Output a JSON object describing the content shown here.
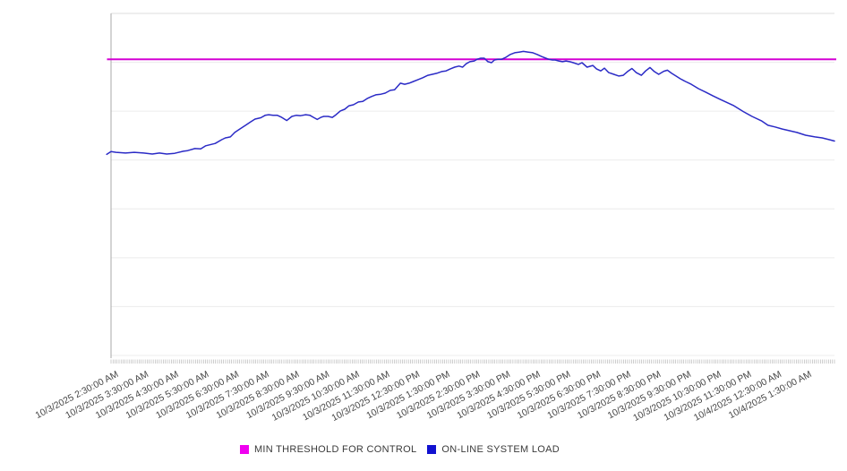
{
  "page": {
    "background": "#ffffff"
  },
  "chart_data": {
    "type": "line",
    "title": "",
    "grid": {
      "horizontal_lines": 8,
      "vertical_lines": 0
    },
    "legend_position": "bottom-center",
    "x_axis": {
      "labels": [
        "10/3/2025 2:30:00 AM",
        "10/3/2025 3:30:00 AM",
        "10/3/2025 4:30:00 AM",
        "10/3/2025 5:30:00 AM",
        "10/3/2025 6:30:00 AM",
        "10/3/2025 7:30:00 AM",
        "10/3/2025 8:30:00 AM",
        "10/3/2025 9:30:00 AM",
        "10/3/2025 10:30:00 AM",
        "10/3/2025 11:30:00 AM",
        "10/3/2025 12:30:00 PM",
        "10/3/2025 1:30:00 PM",
        "10/3/2025 2:30:00 PM",
        "10/3/2025 3:30:00 PM",
        "10/3/2025 4:30:00 PM",
        "10/3/2025 5:30:00 PM",
        "10/3/2025 6:30:00 PM",
        "10/3/2025 7:30:00 PM",
        "10/3/2025 8:30:00 PM",
        "10/3/2025 9:30:00 PM",
        "10/3/2025 10:30:00 PM",
        "10/3/2025 11:30:00 PM",
        "10/4/2025 12:30:00 AM",
        "10/4/2025 1:30:00 AM"
      ],
      "tick_label_rotation_deg": -27.5,
      "minor_tick_count": 360
    },
    "y_axis": {
      "tick_labels_visible": false,
      "range": [
        0,
        100
      ],
      "unit": "relative load (0-100, unlabeled axis)"
    },
    "series": [
      {
        "name": "MIN THRESHOLD FOR CONTROL",
        "type": "constant-threshold-line",
        "value": 86.6,
        "line_color": "#d400d4",
        "legend_color": "#f000f0"
      },
      {
        "name": "ON-LINE SYSTEM LOAD",
        "type": "line",
        "line_color": "#2b2bc6",
        "legend_color": "#1111d0",
        "points": [
          [
            -0.006,
            58.8
          ],
          [
            0.0,
            59.6
          ],
          [
            0.007,
            59.4
          ],
          [
            0.02,
            59.2
          ],
          [
            0.032,
            59.4
          ],
          [
            0.045,
            59.2
          ],
          [
            0.057,
            58.9
          ],
          [
            0.067,
            59.2
          ],
          [
            0.077,
            58.9
          ],
          [
            0.088,
            59.1
          ],
          [
            0.1,
            59.7
          ],
          [
            0.106,
            59.9
          ],
          [
            0.116,
            60.5
          ],
          [
            0.124,
            60.4
          ],
          [
            0.131,
            61.3
          ],
          [
            0.144,
            62.0
          ],
          [
            0.153,
            63.1
          ],
          [
            0.158,
            63.6
          ],
          [
            0.165,
            63.9
          ],
          [
            0.171,
            65.2
          ],
          [
            0.178,
            66.2
          ],
          [
            0.186,
            67.3
          ],
          [
            0.193,
            68.3
          ],
          [
            0.199,
            69.1
          ],
          [
            0.207,
            69.5
          ],
          [
            0.213,
            70.2
          ],
          [
            0.218,
            70.4
          ],
          [
            0.224,
            70.2
          ],
          [
            0.23,
            70.2
          ],
          [
            0.236,
            69.6
          ],
          [
            0.243,
            68.7
          ],
          [
            0.25,
            69.9
          ],
          [
            0.256,
            70.2
          ],
          [
            0.262,
            70.1
          ],
          [
            0.269,
            70.4
          ],
          [
            0.275,
            70.2
          ],
          [
            0.28,
            69.6
          ],
          [
            0.285,
            69.0
          ],
          [
            0.29,
            69.6
          ],
          [
            0.294,
            69.9
          ],
          [
            0.3,
            69.9
          ],
          [
            0.306,
            69.6
          ],
          [
            0.311,
            70.4
          ],
          [
            0.317,
            71.5
          ],
          [
            0.323,
            72.0
          ],
          [
            0.329,
            73.0
          ],
          [
            0.335,
            73.3
          ],
          [
            0.342,
            74.1
          ],
          [
            0.348,
            74.3
          ],
          [
            0.354,
            75.1
          ],
          [
            0.36,
            75.7
          ],
          [
            0.366,
            76.2
          ],
          [
            0.373,
            76.4
          ],
          [
            0.379,
            76.7
          ],
          [
            0.386,
            77.5
          ],
          [
            0.392,
            77.7
          ],
          [
            0.4,
            79.6
          ],
          [
            0.406,
            79.3
          ],
          [
            0.412,
            79.6
          ],
          [
            0.418,
            80.1
          ],
          [
            0.424,
            80.6
          ],
          [
            0.431,
            81.2
          ],
          [
            0.438,
            81.9
          ],
          [
            0.444,
            82.2
          ],
          [
            0.45,
            82.5
          ],
          [
            0.457,
            83.0
          ],
          [
            0.463,
            83.2
          ],
          [
            0.469,
            83.8
          ],
          [
            0.475,
            84.3
          ],
          [
            0.481,
            84.6
          ],
          [
            0.486,
            84.3
          ],
          [
            0.491,
            85.3
          ],
          [
            0.496,
            85.9
          ],
          [
            0.502,
            86.1
          ],
          [
            0.506,
            86.6
          ],
          [
            0.511,
            86.9
          ],
          [
            0.516,
            86.9
          ],
          [
            0.521,
            85.9
          ],
          [
            0.526,
            85.6
          ],
          [
            0.53,
            86.4
          ],
          [
            0.535,
            86.6
          ],
          [
            0.54,
            86.6
          ],
          [
            0.546,
            87.2
          ],
          [
            0.552,
            88.0
          ],
          [
            0.558,
            88.5
          ],
          [
            0.564,
            88.7
          ],
          [
            0.57,
            88.9
          ],
          [
            0.577,
            88.7
          ],
          [
            0.583,
            88.5
          ],
          [
            0.589,
            88.0
          ],
          [
            0.595,
            87.4
          ],
          [
            0.601,
            86.9
          ],
          [
            0.605,
            86.6
          ],
          [
            0.61,
            86.4
          ],
          [
            0.614,
            86.4
          ],
          [
            0.619,
            86.1
          ],
          [
            0.624,
            85.9
          ],
          [
            0.629,
            86.1
          ],
          [
            0.634,
            85.9
          ],
          [
            0.639,
            85.6
          ],
          [
            0.646,
            85.1
          ],
          [
            0.651,
            85.6
          ],
          [
            0.658,
            84.3
          ],
          [
            0.666,
            84.8
          ],
          [
            0.671,
            83.8
          ],
          [
            0.677,
            83.2
          ],
          [
            0.682,
            84.0
          ],
          [
            0.688,
            82.7
          ],
          [
            0.695,
            82.2
          ],
          [
            0.702,
            81.7
          ],
          [
            0.708,
            81.9
          ],
          [
            0.714,
            83.0
          ],
          [
            0.72,
            83.9
          ],
          [
            0.726,
            82.7
          ],
          [
            0.733,
            81.9
          ],
          [
            0.739,
            83.2
          ],
          [
            0.745,
            84.2
          ],
          [
            0.751,
            83.0
          ],
          [
            0.757,
            82.2
          ],
          [
            0.764,
            83.1
          ],
          [
            0.769,
            83.4
          ],
          [
            0.775,
            82.5
          ],
          [
            0.781,
            81.7
          ],
          [
            0.787,
            80.9
          ],
          [
            0.794,
            80.1
          ],
          [
            0.802,
            79.3
          ],
          [
            0.812,
            78.0
          ],
          [
            0.822,
            77.0
          ],
          [
            0.832,
            75.9
          ],
          [
            0.842,
            74.9
          ],
          [
            0.851,
            74.0
          ],
          [
            0.861,
            73.0
          ],
          [
            0.874,
            71.3
          ],
          [
            0.886,
            69.9
          ],
          [
            0.899,
            68.6
          ],
          [
            0.908,
            67.3
          ],
          [
            0.918,
            66.8
          ],
          [
            0.928,
            66.2
          ],
          [
            0.938,
            65.7
          ],
          [
            0.948,
            65.2
          ],
          [
            0.96,
            64.4
          ],
          [
            0.973,
            63.9
          ],
          [
            0.983,
            63.6
          ],
          [
            0.993,
            63.1
          ],
          [
            1.0,
            62.7
          ]
        ]
      }
    ]
  }
}
